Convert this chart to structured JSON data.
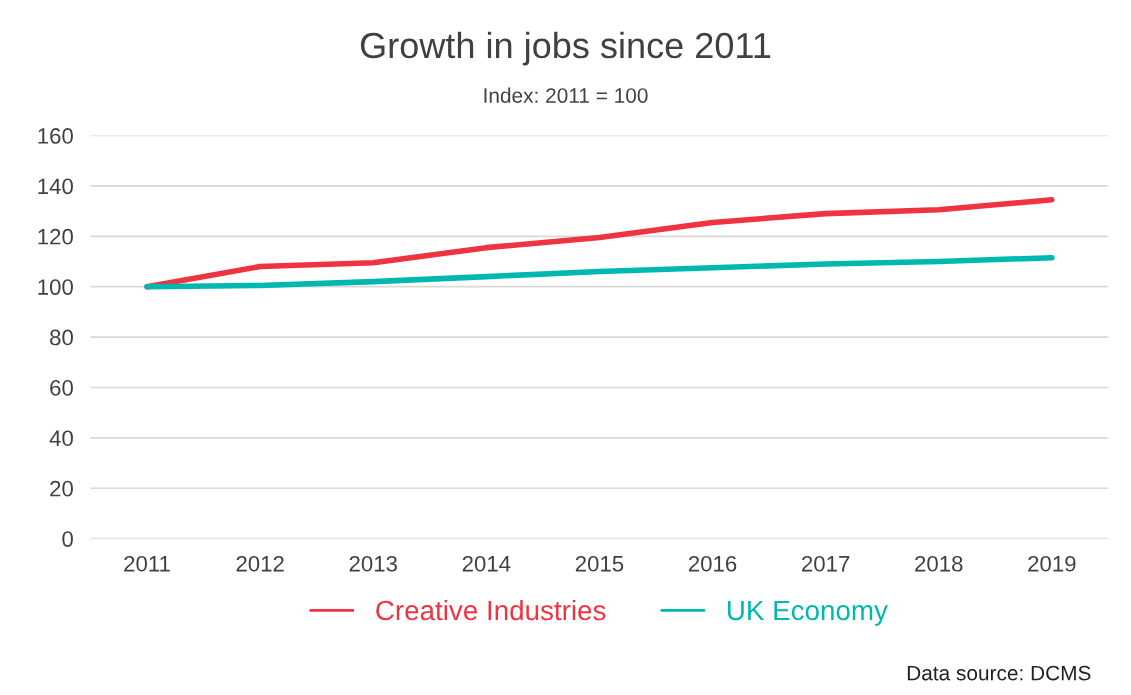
{
  "chart_data": {
    "type": "line",
    "title": "Growth in jobs since 2011",
    "subtitle": "Index: 2011 = 100",
    "categories": [
      "2011",
      "2012",
      "2013",
      "2014",
      "2015",
      "2016",
      "2017",
      "2018",
      "2019"
    ],
    "series": [
      {
        "name": "Creative Industries",
        "color": "#ef3340",
        "values": [
          100,
          108,
          109.5,
          115.5,
          119.5,
          125.5,
          129,
          130.5,
          134.5
        ]
      },
      {
        "name": "UK Economy",
        "color": "#00b8b0",
        "values": [
          100,
          100.5,
          102,
          104,
          106,
          107.5,
          109,
          110,
          111.5
        ]
      }
    ],
    "ylim": [
      0,
      160
    ],
    "yticks": [
      0,
      20,
      40,
      60,
      80,
      100,
      120,
      140,
      160
    ],
    "grid": "y",
    "legend": "bottom",
    "marker": "none",
    "line_style": "solid",
    "annotations": [
      "Data source: DCMS"
    ]
  }
}
